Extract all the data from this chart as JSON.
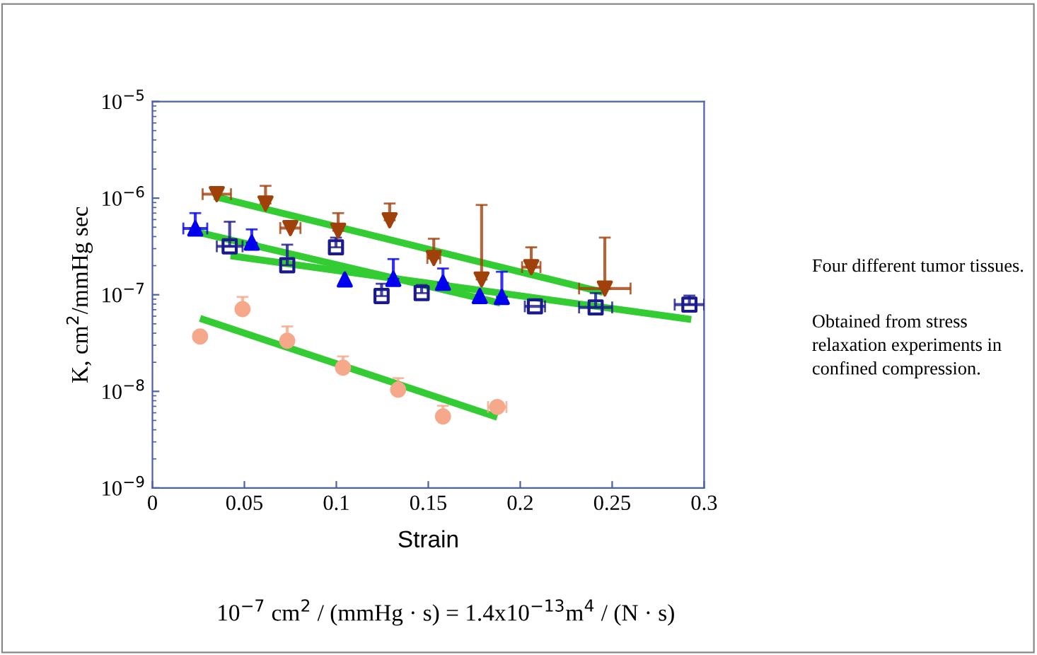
{
  "chart_data": {
    "type": "scatter",
    "xlabel": "Strain",
    "ylabel": "K, cm$^{2}$/mmHg sec",
    "log": "y",
    "xlim": [
      0,
      0.3
    ],
    "xticks": [
      0,
      0.05,
      0.1,
      0.15,
      0.2,
      0.25,
      0.3
    ],
    "ylim": [
      1e-09,
      1e-05
    ],
    "yticks": [
      {
        "value": 1e-09,
        "label": "10$^{−9}$"
      },
      {
        "value": 1e-08,
        "label": "10$^{−8}$"
      },
      {
        "value": 1e-07,
        "label": "10$^{−7}$"
      },
      {
        "value": 1e-06,
        "label": "10$^{−6}$"
      },
      {
        "value": 1e-05,
        "label": "10$^{−5}$"
      }
    ],
    "grid": false,
    "series": [
      {
        "marker": "triangle_down",
        "color": "#a0400a",
        "x": [
          0.035,
          0.0615,
          0.075,
          0.101,
          0.129,
          0.153,
          0.179,
          0.206,
          0.246
        ],
        "values": [
          1.1e-06,
          8.8e-07,
          4.9e-07,
          4.6e-07,
          5.9e-07,
          2.4e-07,
          1.44e-07,
          1.93e-07,
          1.16e-07
        ],
        "errors": [
          null,
          [
            8.8e-07,
            1.34e-06
          ],
          null,
          [
            4.6e-07,
            7e-07
          ],
          [
            5.9e-07,
            8.8e-07
          ],
          [
            2.4e-07,
            3.8e-07
          ],
          [
            1.44e-07,
            8.5e-07
          ],
          [
            1.93e-07,
            3.1e-07
          ],
          [
            1.16e-07,
            3.9e-07
          ]
        ],
        "xerrors": [
          0.0077,
          null,
          0.0055,
          null,
          null,
          0.0035,
          null,
          0.005,
          0.014
        ]
      },
      {
        "marker": "triangle",
        "color": "#0000ee",
        "x": [
          0.0233,
          0.054,
          0.1046,
          0.131,
          0.158,
          0.178,
          0.19
        ],
        "values": [
          4.85e-07,
          3.46e-07,
          1.44e-07,
          1.46e-07,
          1.33e-07,
          9.7e-08,
          9.5e-08
        ],
        "errors": [
          [
            4.85e-07,
            7e-07
          ],
          [
            3.46e-07,
            4.75e-07
          ],
          null,
          [
            1.46e-07,
            2.34e-07
          ],
          [
            1.33e-07,
            1.87e-07
          ],
          null,
          [
            9.5e-08,
            1.73e-07
          ]
        ],
        "xerrors": [
          0.0065,
          null,
          null,
          null,
          null,
          null,
          null
        ]
      },
      {
        "marker": "square_open",
        "color": "#1a1a8c",
        "x": [
          0.042,
          0.0733,
          0.0998,
          0.1246,
          0.1464,
          0.208,
          0.241,
          0.292
        ],
        "values": [
          3.17e-07,
          2.02e-07,
          3.1e-07,
          9.7e-08,
          1.04e-07,
          7.58e-08,
          7.4e-08,
          7.9e-08
        ],
        "errors": [
          [
            3.17e-07,
            5.7e-07
          ],
          [
            2.02e-07,
            3.3e-07
          ],
          [
            3.1e-07,
            3.9e-07
          ],
          [
            9.7e-08,
            1.3e-07
          ],
          [
            1.04e-07,
            1.26e-07
          ],
          null,
          [
            7.4e-08,
            1.04e-07
          ],
          [
            7.9e-08,
            9.8e-08
          ]
        ],
        "xerrors": [
          0.007,
          null,
          null,
          null,
          null,
          0.0055,
          0.009,
          0.008
        ]
      },
      {
        "marker": "circle",
        "color": "#f5a88a",
        "x": [
          0.0259,
          0.049,
          0.0733,
          0.1036,
          0.1336,
          0.158,
          0.1875
        ],
        "values": [
          3.7e-08,
          7.1e-08,
          3.34e-08,
          1.76e-08,
          1.04e-08,
          5.5e-09,
          6.9e-09
        ],
        "errors": [
          null,
          [
            7.1e-08,
            9.5e-08
          ],
          [
            3.34e-08,
            4.7e-08
          ],
          [
            1.76e-08,
            2.3e-08
          ],
          [
            1.04e-08,
            1.37e-08
          ],
          [
            5.5e-09,
            7.1e-09
          ],
          null
        ],
        "xerrors": [
          null,
          null,
          null,
          null,
          null,
          null,
          0.005
        ]
      },
      {
        "type": "line",
        "color": "#33cc33",
        "x": [
          0.0336,
          0.245
        ],
        "values": [
          1.04e-06,
          1.06e-07
        ]
      },
      {
        "type": "line",
        "color": "#33cc33",
        "x": [
          0.0246,
          0.1892
        ],
        "values": [
          4.45e-07,
          8.2e-08
        ]
      },
      {
        "type": "line",
        "color": "#33cc33",
        "x": [
          0.0425,
          0.293
        ],
        "values": [
          2.53e-07,
          5.55e-08
        ]
      },
      {
        "type": "line",
        "color": "#33cc33",
        "x": [
          0.0259,
          0.1875
        ],
        "values": [
          5.7e-08,
          5.4e-09
        ]
      }
    ],
    "annotations": [
      "Four different tumor tissues.",
      "Obtained from stress relaxation experiments in confined compression.",
      "10$^{−7}$ cm$^{2}$ / (mmHg · s) = 1.4x10$^{−13}$m$^{4}$ / (N · s)"
    ]
  }
}
